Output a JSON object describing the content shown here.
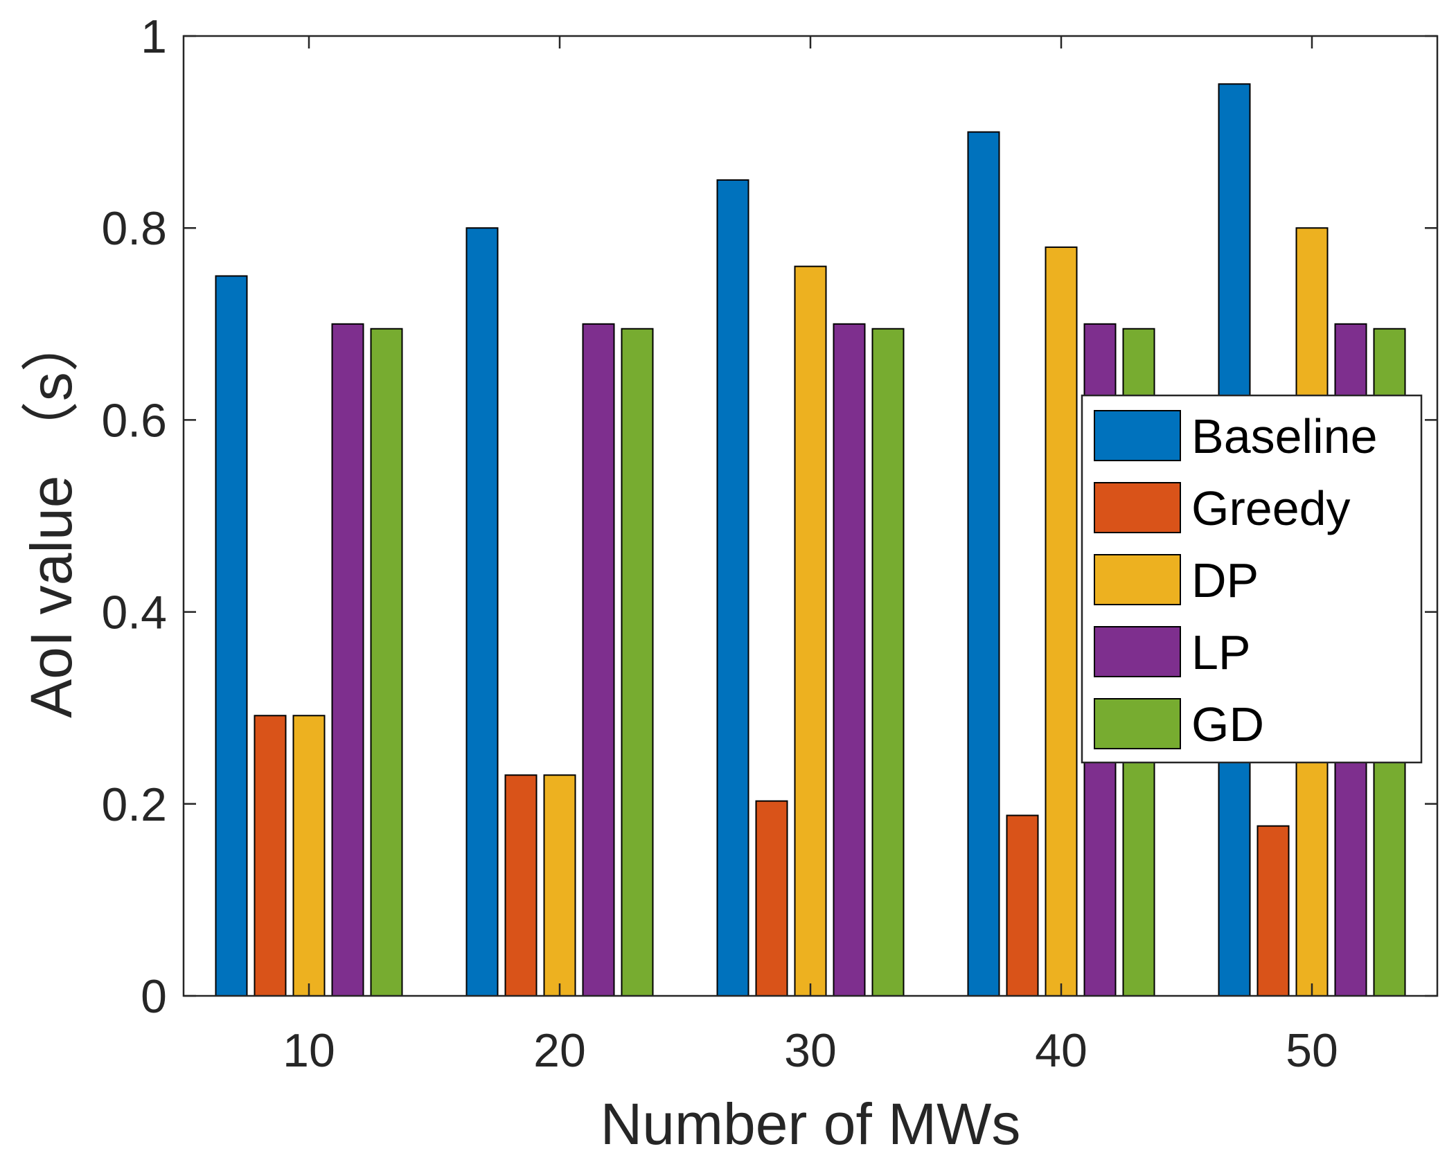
{
  "chart_data": {
    "type": "bar",
    "title": "",
    "xlabel": "Number of MWs",
    "ylabel": "AoI value （s）",
    "categories": [
      "10",
      "20",
      "30",
      "40",
      "50"
    ],
    "ylim": [
      0,
      1
    ],
    "yticks": [
      "0",
      "0.2",
      "0.4",
      "0.6",
      "0.8",
      "1"
    ],
    "ytick_values": [
      0,
      0.2,
      0.4,
      0.6,
      0.8,
      1
    ],
    "grid": false,
    "legend_position": "right-middle",
    "series": [
      {
        "name": "Baseline",
        "color": "#0072BD",
        "values": [
          0.75,
          0.8,
          0.85,
          0.9,
          0.95
        ]
      },
      {
        "name": "Greedy",
        "color": "#D95319",
        "values": [
          0.292,
          0.23,
          0.203,
          0.188,
          0.177
        ]
      },
      {
        "name": "DP",
        "color": "#EDB120",
        "values": [
          0.292,
          0.23,
          0.76,
          0.78,
          0.8
        ]
      },
      {
        "name": "LP",
        "color": "#7E2F8E",
        "values": [
          0.7,
          0.7,
          0.7,
          0.7,
          0.7
        ]
      },
      {
        "name": "GD",
        "color": "#77AC30",
        "values": [
          0.695,
          0.695,
          0.695,
          0.695,
          0.695
        ]
      }
    ]
  }
}
